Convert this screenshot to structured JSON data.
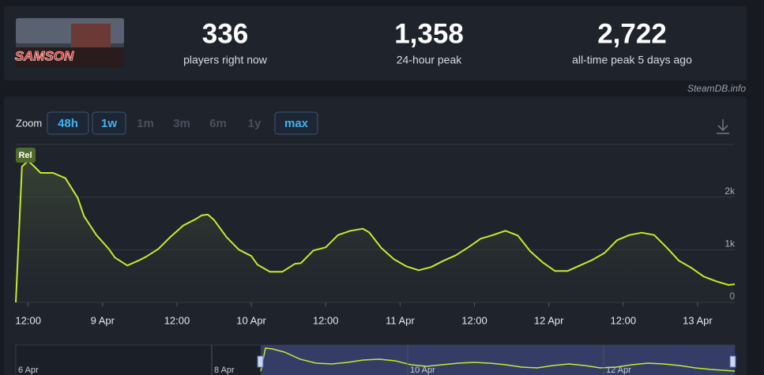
{
  "header": {
    "logo_text": "SAMSON",
    "stats": [
      {
        "value": "336",
        "label": "players right now"
      },
      {
        "value": "1,358",
        "label": "24-hour peak"
      },
      {
        "value": "2,722",
        "label": "all-time peak 5 days ago"
      }
    ],
    "source": "SteamDB.info"
  },
  "toolbar": {
    "label": "Zoom",
    "buttons": [
      "48h",
      "1w",
      "1m",
      "3m",
      "6m",
      "1y",
      "max"
    ],
    "active": [
      "48h",
      "1w",
      "max"
    ],
    "disabled": [
      "1m",
      "3m",
      "6m",
      "1y"
    ]
  },
  "navigator": {
    "labels": [
      "6 Apr",
      "8 Apr",
      "10 Apr",
      "12 Apr"
    ]
  },
  "chart_data": {
    "type": "line",
    "marker_label": "Rel",
    "x": [
      10,
      11,
      12,
      13,
      14,
      16,
      18,
      20,
      21,
      23,
      25,
      26,
      28,
      30,
      31,
      33,
      35,
      37,
      39,
      40,
      41,
      42,
      44,
      46,
      48,
      49,
      51,
      53,
      55,
      56,
      58,
      60,
      62,
      64,
      66,
      67,
      69,
      71,
      73,
      75,
      77,
      79,
      81,
      83,
      85,
      87,
      89,
      91,
      93,
      95,
      97,
      99,
      101,
      103,
      105,
      107,
      109,
      111,
      113,
      115,
      117,
      119,
      121,
      123,
      125,
      126
    ],
    "series": [
      {
        "color": "#c5ea2e",
        "values": [
          0,
          2580,
          2690,
          2580,
          2460,
          2460,
          2360,
          1985,
          1640,
          1280,
          1015,
          850,
          700,
          805,
          865,
          1015,
          1250,
          1460,
          1580,
          1655,
          1670,
          1565,
          1240,
          1000,
          880,
          715,
          580,
          580,
          730,
          745,
          985,
          1045,
          1280,
          1360,
          1400,
          1330,
          1030,
          820,
          685,
          610,
          670,
          790,
          895,
          1045,
          1210,
          1280,
          1360,
          1270,
          970,
          760,
          595,
          595,
          700,
          805,
          940,
          1180,
          1280,
          1325,
          1280,
          1045,
          790,
          655,
          490,
          400,
          330,
          345
        ]
      }
    ],
    "xlim": [
      10,
      126
    ],
    "xticks": [
      {
        "value": 12,
        "label": "12:00"
      },
      {
        "value": 24,
        "label": "9 Apr"
      },
      {
        "value": 36,
        "label": "12:00"
      },
      {
        "value": 48,
        "label": "10 Apr"
      },
      {
        "value": 60,
        "label": "12:00"
      },
      {
        "value": 72,
        "label": "11 Apr"
      },
      {
        "value": 84,
        "label": "12:00"
      },
      {
        "value": 96,
        "label": "12 Apr"
      },
      {
        "value": 108,
        "label": "12:00"
      },
      {
        "value": 120,
        "label": "13 Apr"
      }
    ],
    "ylim": [
      0,
      3000
    ],
    "yticks": [
      0,
      {
        "value": 1000,
        "label": "1k"
      },
      {
        "value": 2000,
        "label": "2k"
      }
    ],
    "grid": true
  }
}
